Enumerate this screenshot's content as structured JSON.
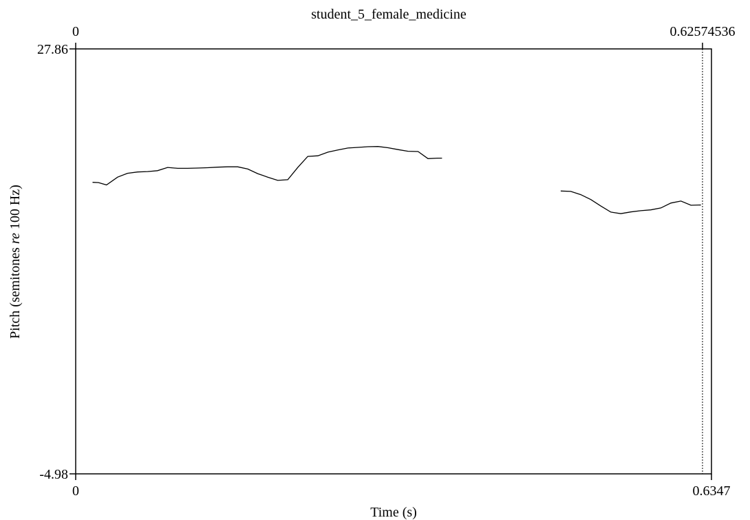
{
  "chart_data": {
    "type": "line",
    "title": "student_5_female_medicine",
    "xlabel": "Time (s)",
    "ylabel_prefix": "Pitch (semitones ",
    "ylabel_italic": "re",
    "ylabel_suffix": " 100 Hz)",
    "xlim": [
      0,
      0.6347
    ],
    "ylim": [
      -4.98,
      27.86
    ],
    "ticks": {
      "bottom_left": "0",
      "bottom_right": "0.6347",
      "top_left": "0",
      "top_right": "0.62574536",
      "left_top": "27.86",
      "left_bottom": "-4.98"
    },
    "cursor_x": 0.62574536,
    "grid": false,
    "series": [
      {
        "values": [
          [
            0.0168,
            17.55
          ],
          [
            0.0228,
            17.53
          ],
          [
            0.0308,
            17.35
          ],
          [
            0.0418,
            17.95
          ],
          [
            0.0517,
            18.25
          ],
          [
            0.0618,
            18.35
          ],
          [
            0.0718,
            18.38
          ],
          [
            0.0817,
            18.45
          ],
          [
            0.0918,
            18.7
          ],
          [
            0.1018,
            18.63
          ],
          [
            0.1117,
            18.63
          ],
          [
            0.1217,
            18.65
          ],
          [
            0.1317,
            18.68
          ],
          [
            0.1418,
            18.72
          ],
          [
            0.1518,
            18.75
          ],
          [
            0.1617,
            18.75
          ],
          [
            0.1718,
            18.58
          ],
          [
            0.1817,
            18.22
          ],
          [
            0.1917,
            17.95
          ],
          [
            0.2017,
            17.7
          ],
          [
            0.2117,
            17.75
          ],
          [
            0.2217,
            18.7
          ],
          [
            0.2317,
            19.55
          ],
          [
            0.2418,
            19.6
          ],
          [
            0.2518,
            19.88
          ],
          [
            0.2617,
            20.05
          ],
          [
            0.2718,
            20.2
          ],
          [
            0.2817,
            20.25
          ],
          [
            0.2918,
            20.3
          ],
          [
            0.3018,
            20.32
          ],
          [
            0.3118,
            20.22
          ],
          [
            0.3218,
            20.08
          ],
          [
            0.3318,
            19.95
          ],
          [
            0.3418,
            19.93
          ],
          [
            0.3517,
            19.38
          ],
          [
            0.3617,
            19.42
          ],
          [
            0.3657,
            19.42
          ]
        ]
      },
      {
        "values": [
          [
            0.4842,
            16.88
          ],
          [
            0.4942,
            16.85
          ],
          [
            0.5042,
            16.6
          ],
          [
            0.5142,
            16.22
          ],
          [
            0.5242,
            15.72
          ],
          [
            0.5342,
            15.25
          ],
          [
            0.5442,
            15.13
          ],
          [
            0.5542,
            15.26
          ],
          [
            0.5642,
            15.36
          ],
          [
            0.5742,
            15.42
          ],
          [
            0.5842,
            15.57
          ],
          [
            0.5942,
            15.95
          ],
          [
            0.6042,
            16.1
          ],
          [
            0.6142,
            15.78
          ],
          [
            0.6242,
            15.8
          ]
        ]
      }
    ]
  }
}
